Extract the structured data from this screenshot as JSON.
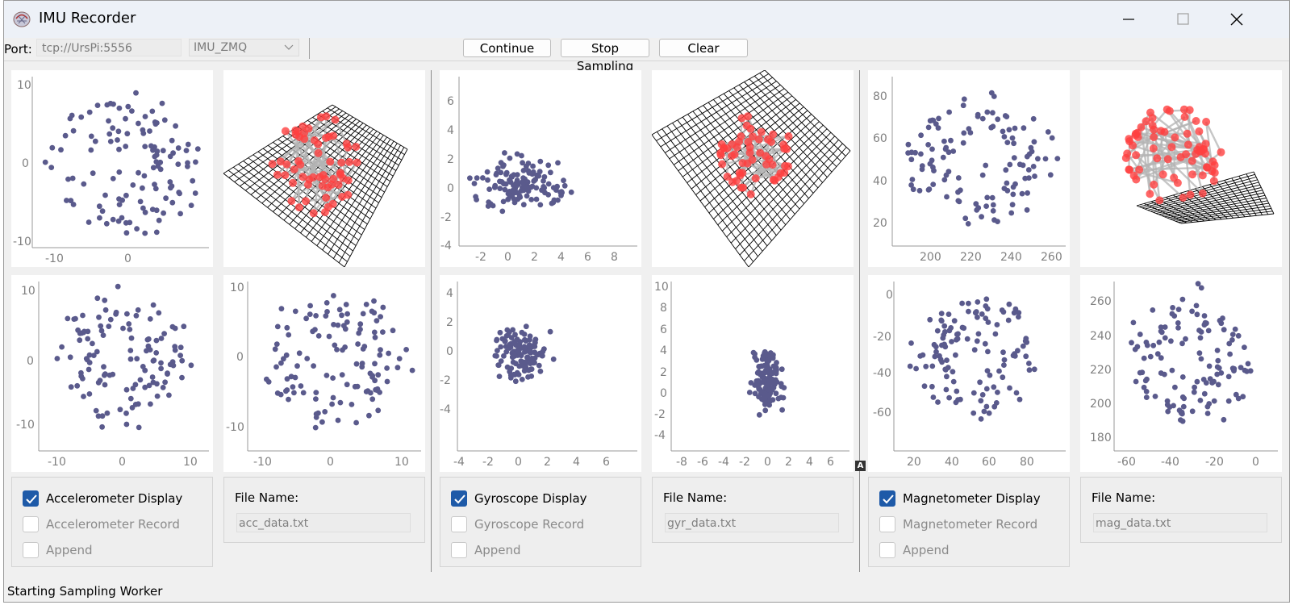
{
  "window": {
    "title": "IMU Recorder"
  },
  "toolbar": {
    "port_label": "Port:",
    "port_value": "tcp://UrsPi:5556",
    "protocol_value": "IMU_ZMQ",
    "continue_label": "Continue",
    "stop_label": "Stop Sampling",
    "clear_label": "Clear"
  },
  "plots": {
    "acc_xy": {
      "xticks": [
        "-10",
        "0"
      ],
      "yticks": [
        "10",
        "0",
        "-10"
      ]
    },
    "acc_xz": {
      "xticks": [
        "-10",
        "0",
        "10"
      ],
      "yticks": [
        "10",
        "0",
        "-10"
      ]
    },
    "acc_yz": {
      "xticks": [
        "-10",
        "0",
        "10"
      ],
      "yticks": [
        "10",
        "0",
        "-10"
      ]
    },
    "gyr_xy": {
      "xticks": [
        "-2",
        "0",
        "2",
        "4",
        "6",
        "8"
      ],
      "yticks": [
        "6",
        "4",
        "2",
        "0",
        "-2",
        "-4"
      ]
    },
    "gyr_xz": {
      "xticks": [
        "-4",
        "-2",
        "0",
        "2",
        "4",
        "6"
      ],
      "yticks": [
        "4",
        "2",
        "0",
        "-2",
        "-4"
      ]
    },
    "gyr_yz": {
      "xticks": [
        "-8",
        "-6",
        "-4",
        "-2",
        "0",
        "2",
        "4",
        "6"
      ],
      "yticks": [
        "10",
        "8",
        "6",
        "4",
        "2",
        "0",
        "-2",
        "-4"
      ]
    },
    "mag_xy": {
      "xticks": [
        "200",
        "220",
        "240",
        "260"
      ],
      "yticks": [
        "80",
        "60",
        "40",
        "20"
      ]
    },
    "mag_xz": {
      "xticks": [
        "20",
        "40",
        "60",
        "80"
      ],
      "yticks": [
        "0",
        "-20",
        "-40",
        "-60"
      ]
    },
    "mag_yz": {
      "xticks": [
        "-60",
        "-40",
        "-20",
        "0"
      ],
      "yticks": [
        "260",
        "240",
        "220",
        "200",
        "180"
      ]
    }
  },
  "accelerometer": {
    "display_label": "Accelerometer Display",
    "display_checked": true,
    "record_label": "Accelerometer Record",
    "record_checked": false,
    "append_label": "Append",
    "append_checked": false,
    "file_label": "File Name:",
    "file_value": "acc_data.txt"
  },
  "gyroscope": {
    "display_label": "Gyroscope Display",
    "display_checked": true,
    "record_label": "Gyroscope Record",
    "record_checked": false,
    "append_label": "Append",
    "append_checked": false,
    "file_label": "File Name:",
    "file_value": "gyr_data.txt"
  },
  "magnetometer": {
    "display_label": "Magnetometer Display",
    "display_checked": true,
    "record_label": "Magnetometer Record",
    "record_checked": false,
    "append_label": "Append",
    "append_checked": false,
    "file_label": "File Name:",
    "file_value": "mag_data.txt"
  },
  "autorange_badge": "A",
  "status": {
    "text": "Starting Sampling Worker"
  },
  "colors": {
    "point": "#5a5a8c",
    "point3d": "#ff4040",
    "check_on": "#1e5aa8"
  }
}
